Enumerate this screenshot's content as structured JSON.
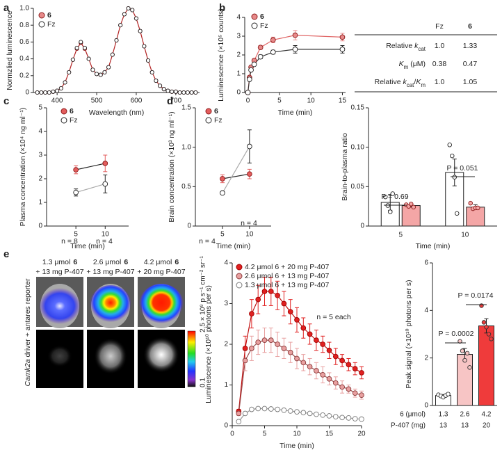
{
  "panels": [
    "a",
    "b",
    "c",
    "d",
    "e"
  ],
  "chart_data": [
    {
      "type": "line",
      "x_label": "Wavelength (nm)",
      "y_label": "Normzlied luminescence",
      "x": [
        350,
        360,
        370,
        380,
        390,
        400,
        410,
        420,
        430,
        440,
        450,
        460,
        470,
        480,
        490,
        500,
        510,
        520,
        530,
        540,
        550,
        560,
        570,
        580,
        590,
        600,
        610,
        620,
        630,
        640,
        650,
        660,
        670,
        680,
        690,
        700,
        710,
        720,
        730,
        740,
        750
      ],
      "xlim": [
        340,
        760
      ],
      "xticks": [
        400,
        500,
        600,
        700
      ],
      "ylim": [
        0,
        1.0
      ],
      "yticks": [
        0,
        0.2,
        0.4,
        0.6,
        0.8,
        {
          "value": 1.0,
          "label": "1.0"
        }
      ],
      "series": [
        {
          "name": "6",
          "color": "#8b1a1a",
          "fill": "#e88a8a",
          "line_color": "#b22222",
          "values": [
            0,
            0,
            0,
            0,
            0.01,
            0.02,
            0.05,
            0.12,
            0.24,
            0.39,
            0.52,
            0.59,
            0.52,
            0.4,
            0.27,
            0.22,
            0.21,
            0.24,
            0.3,
            0.45,
            0.62,
            0.8,
            0.93,
            1.0,
            0.98,
            0.88,
            0.73,
            0.55,
            0.38,
            0.24,
            0.14,
            0.08,
            0.04,
            0.02,
            0.01,
            0.01,
            0,
            0,
            0,
            0,
            0
          ]
        },
        {
          "name": "Fz",
          "color": "#222222",
          "fill": "#ffffff",
          "values": [
            0,
            0,
            0,
            0,
            0.01,
            0.02,
            0.05,
            0.12,
            0.24,
            0.39,
            0.53,
            0.6,
            0.53,
            0.4,
            0.27,
            0.22,
            0.21,
            0.24,
            0.3,
            0.45,
            0.62,
            0.8,
            0.93,
            1.0,
            0.98,
            0.88,
            0.73,
            0.55,
            0.38,
            0.24,
            0.14,
            0.08,
            0.04,
            0.02,
            0.01,
            0.01,
            0,
            0,
            0,
            0,
            0
          ]
        }
      ]
    },
    {
      "type": "line",
      "x_label": "Time (min)",
      "y_label": "Luminescence (×10⁵ counts)",
      "x": [
        0,
        0.25,
        0.5,
        1,
        2,
        4,
        7.5,
        15
      ],
      "xlim": [
        -0.5,
        15.5
      ],
      "xticks": [
        0,
        5,
        10,
        15
      ],
      "ylim": [
        0,
        4
      ],
      "yticks": [
        0,
        1,
        2,
        3,
        4
      ],
      "series": [
        {
          "name": "6",
          "color": "#8b1a1a",
          "fill": "#e88a8a",
          "line_color": "#e06666",
          "values": [
            0,
            0.8,
            1.35,
            1.7,
            2.4,
            2.8,
            3.05,
            2.95
          ],
          "errors": [
            0,
            0.05,
            0.05,
            0.1,
            0.1,
            0.15,
            0.25,
            0.2
          ]
        },
        {
          "name": "Fz",
          "color": "#222222",
          "fill": "#ffffff",
          "line_color": "#333333",
          "values": [
            0,
            0.7,
            1.2,
            1.5,
            1.9,
            2.15,
            2.3,
            2.3
          ],
          "errors": [
            0,
            0.05,
            0.05,
            0.05,
            0.1,
            0.1,
            0.2,
            0.2
          ]
        }
      ]
    },
    {
      "type": "line",
      "x_label": "Time (min)",
      "y_label": "Plasma concentration (×10⁴ ng ml⁻¹)",
      "x": [
        5,
        10
      ],
      "xlim": [
        0,
        14
      ],
      "xticks": [
        5,
        10
      ],
      "ylim": [
        0,
        5
      ],
      "yticks": [
        0,
        1,
        2,
        3,
        4,
        5
      ],
      "annotations": [
        "n = 8",
        "n = 4"
      ],
      "series": [
        {
          "name": "6",
          "color": "#8b1a1a",
          "fill": "#e35d5d",
          "line_color": "#222222",
          "values": [
            2.38,
            2.65
          ],
          "errors": [
            0.17,
            0.35
          ]
        },
        {
          "name": "Fz",
          "color": "#222222",
          "fill": "#ffffff",
          "line_color": "#aaaaaa",
          "values": [
            1.42,
            1.78
          ],
          "errors": [
            0.15,
            0.38
          ]
        }
      ]
    },
    {
      "type": "line",
      "x_label": "Time (min)",
      "y_label": "Brain concentration (×10³ ng ml⁻¹)",
      "x": [
        5,
        10
      ],
      "xlim": [
        0,
        14
      ],
      "xticks": [
        5,
        10
      ],
      "ylim": [
        0,
        1.5
      ],
      "yticks": [
        0,
        0.5,
        {
          "value": 1.0,
          "label": "1.0"
        },
        1.5
      ],
      "annotations": [
        "n = 4",
        "n = 4"
      ],
      "series": [
        {
          "name": "6",
          "color": "#8b1a1a",
          "fill": "#e35d5d",
          "line_color": "#222222",
          "values": [
            0.6,
            0.66
          ],
          "errors": [
            0.05,
            0.06
          ]
        },
        {
          "name": "Fz",
          "color": "#222222",
          "fill": "#ffffff",
          "line_color": "#aaaaaa",
          "values": [
            0.42,
            1.01
          ],
          "errors": [
            null,
            0.21
          ]
        }
      ]
    },
    {
      "type": "bar",
      "x_label": "Time (min)",
      "y_label": "Brain-to-plasma ratio",
      "categories": [
        "5",
        "10"
      ],
      "ylim": [
        0,
        0.15
      ],
      "yticks": [
        0,
        0.05,
        {
          "value": 0.1,
          "label": "0.10"
        },
        0.15
      ],
      "annotations": [
        "P = 0.69",
        "P = 0.051"
      ],
      "series": [
        {
          "color": "#222222",
          "fill": "#ffffff",
          "values": [
            0.03,
            0.068
          ],
          "errors": [
            0.01,
            0.017
          ],
          "points": [
            [
              0.037,
              0.026,
              0.018,
              0.041
            ],
            [
              0.103,
              0.089,
              0.062,
              0.016
            ]
          ]
        },
        {
          "color": "#8b1a1a",
          "fill": "#f4a6a6",
          "values": [
            0.026,
            0.024
          ],
          "errors": [
            0.002,
            0.003
          ],
          "points": [
            [
              0.027,
              0.025,
              0.028,
              0.024
            ],
            [
              0.029,
              0.022,
              0.023,
              0.023
            ]
          ]
        }
      ]
    },
    {
      "type": "line",
      "x_label": "Time (min)",
      "y_label": "Luminescence (×10¹⁰ photons per s)",
      "x": [
        1,
        2,
        3,
        4,
        5,
        6,
        7,
        8,
        9,
        10,
        11,
        12,
        13,
        14,
        15,
        16,
        17,
        18,
        19,
        20
      ],
      "xlim": [
        0,
        20
      ],
      "xticks": [
        0,
        5,
        10,
        15,
        20
      ],
      "ylim": [
        0,
        4
      ],
      "yticks": [
        0,
        1,
        2,
        3,
        4
      ],
      "annotations": [
        "n = 5 each"
      ],
      "series": [
        {
          "name": "4.2 μmol 6 + 20 mg P-407",
          "color": "#a00000",
          "fill": "#e02020",
          "line_color": "#c01010",
          "values": [
            0.35,
            1.9,
            2.75,
            3.1,
            3.3,
            3.3,
            3.2,
            3.0,
            2.8,
            2.6,
            2.4,
            2.25,
            2.1,
            2.0,
            1.85,
            1.7,
            1.6,
            1.5,
            1.4,
            1.3
          ],
          "errors": [
            0.05,
            0.3,
            0.35,
            0.35,
            0.35,
            0.35,
            0.35,
            0.3,
            0.3,
            0.3,
            0.25,
            0.25,
            0.25,
            0.2,
            0.2,
            0.2,
            0.15,
            0.15,
            0.15,
            0.15
          ]
        },
        {
          "name": "2.6 μmol 6 + 13 mg P-407",
          "color": "#8b3a3a",
          "fill": "#e8a0a0",
          "line_color": "#9b4a4a",
          "values": [
            0.3,
            1.6,
            1.9,
            2.05,
            2.1,
            2.1,
            2.0,
            1.9,
            1.8,
            1.65,
            1.55,
            1.45,
            1.35,
            1.25,
            1.15,
            1.05,
            0.95,
            0.9,
            0.8,
            0.75
          ],
          "errors": [
            0.05,
            0.25,
            0.3,
            0.3,
            0.3,
            0.3,
            0.3,
            0.25,
            0.25,
            0.25,
            0.2,
            0.2,
            0.2,
            0.2,
            0.15,
            0.15,
            0.15,
            0.1,
            0.1,
            0.1
          ]
        },
        {
          "name": "1.3 μmol 6 + 13 mg P-407",
          "color": "#777777",
          "fill": "#ffffff",
          "line_color": "#999999",
          "values": [
            0.1,
            0.3,
            0.4,
            0.42,
            0.42,
            0.41,
            0.4,
            0.38,
            0.36,
            0.34,
            0.32,
            0.3,
            0.28,
            0.26,
            0.24,
            0.22,
            0.2,
            0.19,
            0.17,
            0.16
          ]
        }
      ]
    },
    {
      "type": "bar",
      "y_label": "Peak signal (×10¹⁰ photons per s)",
      "categories": [
        "1.3",
        "2.6",
        "4.2"
      ],
      "categories2": [
        "13",
        "13",
        "20"
      ],
      "category_labels": [
        "6 (μmol)",
        "P-407 (mg)"
      ],
      "ylim": [
        0,
        6
      ],
      "yticks": [
        0,
        2,
        4,
        6
      ],
      "annotations": [
        "P = 0.0002",
        "P = 0.0174"
      ],
      "series": [
        {
          "color": "#333333",
          "colors": [
            "#ffffff",
            "#f7c5c5",
            "#ef3b3b"
          ],
          "values": [
            0.42,
            2.15,
            3.35
          ],
          "errors": [
            0.04,
            0.25,
            0.3
          ],
          "points": [
            [
              0.45,
              0.4,
              0.35,
              0.42,
              0.48
            ],
            [
              2.7,
              2.3,
              1.9,
              2.2,
              1.6
            ],
            [
              4.2,
              3.5,
              3.3,
              3.0,
              2.8
            ]
          ]
        }
      ]
    }
  ],
  "table": {
    "columns": [
      "Fz",
      "6"
    ],
    "rows": [
      {
        "label": [
          {
            "text": "Relative "
          },
          {
            "text": "k",
            "style": "italic"
          },
          {
            "text": "cat",
            "style": "sub"
          }
        ],
        "values": [
          "1.0",
          "1.33"
        ]
      },
      {
        "label": [
          {
            "text": "K",
            "style": "italic"
          },
          {
            "text": "m",
            "style": "sub"
          },
          {
            "text": " (μM)"
          }
        ],
        "values": [
          "0.38",
          "0.47"
        ]
      },
      {
        "label": [
          {
            "text": "Relative "
          },
          {
            "text": "k",
            "style": "italic"
          },
          {
            "text": "cat",
            "style": "sub"
          },
          {
            "text": "/"
          },
          {
            "text": "K",
            "style": "italic"
          },
          {
            "text": "m",
            "style": "sub"
          }
        ],
        "values": [
          "1.0",
          "1.05"
        ]
      }
    ]
  },
  "images": {
    "columns": [
      {
        "amount": "1.3 μmol",
        "compound": "6",
        "vehicle": "+ 13 mg P-407"
      },
      {
        "amount": "2.6 μmol",
        "compound": "6",
        "vehicle": "+ 13 mg P-407"
      },
      {
        "amount": "4.2 μmol",
        "compound": "6",
        "vehicle": "+ 20 mg P-407"
      }
    ],
    "side_label": [
      {
        "text": "Camk2a",
        "style": "italic"
      },
      {
        "text": " driver + antares reporter"
      }
    ],
    "colorbar": {
      "max": "2.5 × 10⁹ p s⁻¹ cm⁻² sr⁻¹",
      "min": "0.1"
    }
  }
}
